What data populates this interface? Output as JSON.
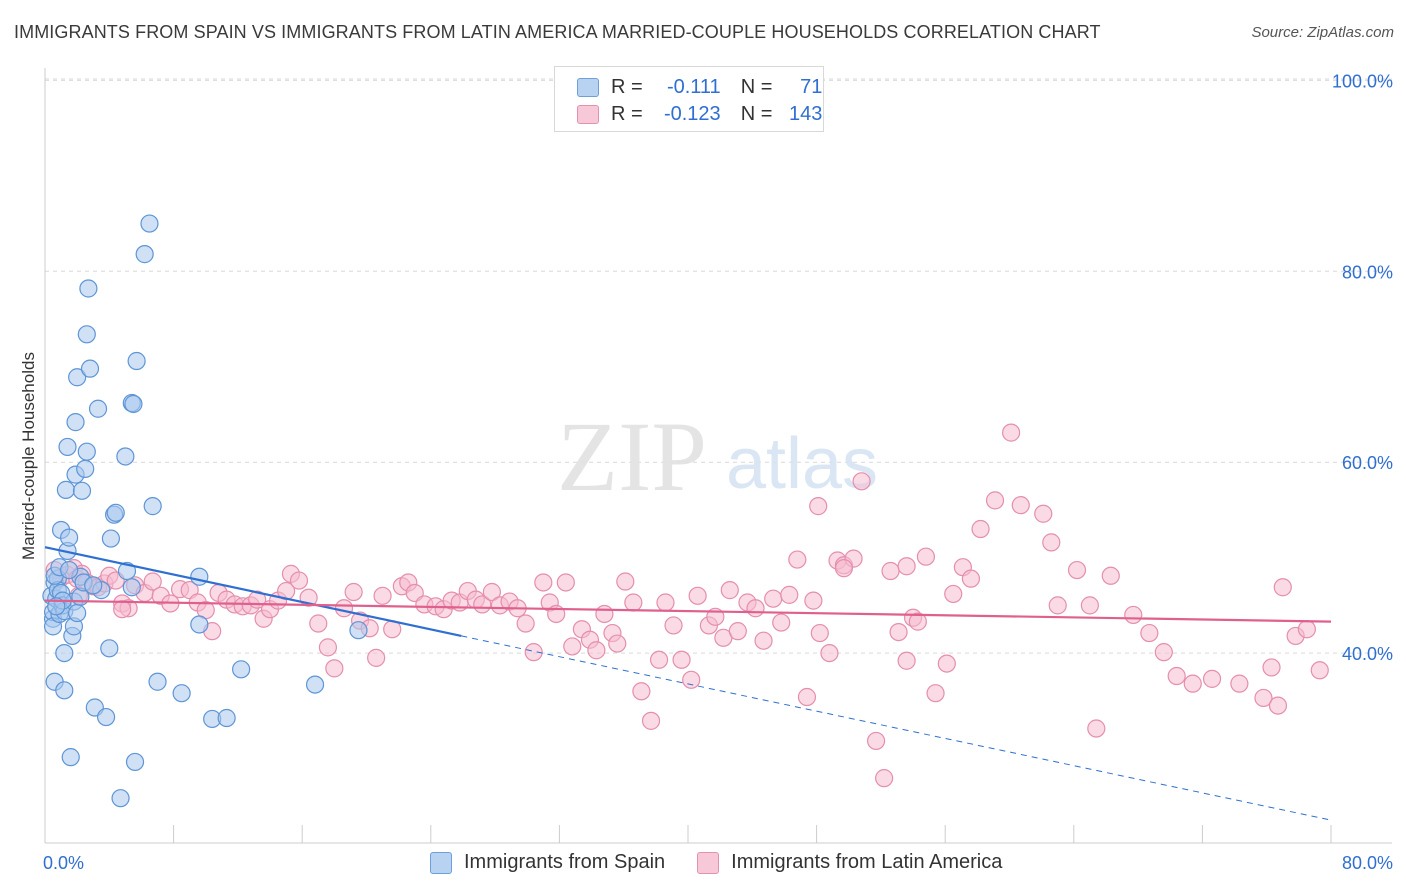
{
  "title": "IMMIGRANTS FROM SPAIN VS IMMIGRANTS FROM LATIN AMERICA MARRIED-COUPLE HOUSEHOLDS CORRELATION CHART",
  "source": "Source: ZipAtlas.com",
  "watermark": {
    "zip": "ZIP",
    "atlas": "atlas"
  },
  "stats": {
    "r_label": "R =",
    "n_label": "N =",
    "spain": {
      "r": "-0.111",
      "n": "71"
    },
    "latin": {
      "r": "-0.123",
      "n": "143"
    }
  },
  "legend": {
    "spain": "Immigrants from Spain",
    "latin": "Immigrants from Latin America"
  },
  "colors": {
    "spain_fill": "#a9c9ef",
    "spain_stroke": "#5e95d6",
    "spain_line": "#2f6fd1",
    "latin_fill": "#f5bcd0",
    "latin_stroke": "#e58eae",
    "latin_line": "#e0608d",
    "axis_label": "#2f6fd1",
    "grid": "#d9d9d9"
  },
  "chart_data": {
    "type": "scatter",
    "title": "IMMIGRANTS FROM SPAIN VS IMMIGRANTS FROM LATIN AMERICA MARRIED-COUPLE HOUSEHOLDS CORRELATION CHART",
    "xlabel": "",
    "ylabel": "Married-couple Households",
    "xlim": [
      0,
      80
    ],
    "ylim": [
      20,
      102
    ],
    "x_tick_labels": [
      "0.0%",
      "80.0%"
    ],
    "y_ticks": [
      40,
      60,
      80,
      100
    ],
    "y_tick_labels": [
      "40.0%",
      "60.0%",
      "80.0%",
      "100.0%"
    ],
    "grid": true,
    "series": [
      {
        "name": "Immigrants from Spain",
        "points": [
          [
            0.4,
            46.0
          ],
          [
            0.5,
            43.6
          ],
          [
            0.5,
            44.3
          ],
          [
            0.6,
            47.4
          ],
          [
            0.7,
            45.7
          ],
          [
            0.8,
            47.8
          ],
          [
            0.5,
            42.8
          ],
          [
            0.6,
            37.0
          ],
          [
            0.8,
            46.6
          ],
          [
            0.9,
            44.1
          ],
          [
            1.0,
            46.3
          ],
          [
            1.1,
            45.0
          ],
          [
            1.0,
            52.9
          ],
          [
            1.2,
            44.4
          ],
          [
            1.2,
            40.0
          ],
          [
            1.2,
            36.1
          ],
          [
            1.3,
            57.1
          ],
          [
            1.4,
            50.7
          ],
          [
            1.4,
            61.6
          ],
          [
            1.5,
            52.1
          ],
          [
            1.6,
            29.1
          ],
          [
            1.7,
            41.8
          ],
          [
            1.8,
            42.8
          ],
          [
            1.8,
            45.4
          ],
          [
            1.9,
            64.2
          ],
          [
            1.9,
            58.7
          ],
          [
            2.0,
            44.2
          ],
          [
            2.0,
            68.9
          ],
          [
            2.2,
            48.0
          ],
          [
            2.3,
            57.0
          ],
          [
            2.5,
            59.3
          ],
          [
            2.6,
            61.1
          ],
          [
            2.6,
            73.4
          ],
          [
            2.7,
            78.2
          ],
          [
            2.8,
            69.8
          ],
          [
            3.1,
            34.3
          ],
          [
            3.3,
            65.6
          ],
          [
            3.5,
            46.6
          ],
          [
            3.8,
            33.3
          ],
          [
            4.0,
            40.5
          ],
          [
            4.1,
            52.0
          ],
          [
            4.3,
            54.5
          ],
          [
            4.4,
            54.7
          ],
          [
            4.7,
            24.8
          ],
          [
            5.0,
            60.6
          ],
          [
            5.1,
            48.6
          ],
          [
            5.4,
            46.9
          ],
          [
            5.4,
            66.2
          ],
          [
            5.5,
            66.1
          ],
          [
            5.6,
            28.6
          ],
          [
            5.7,
            70.6
          ],
          [
            6.2,
            81.8
          ],
          [
            6.5,
            85.0
          ],
          [
            6.7,
            55.4
          ],
          [
            7.0,
            37.0
          ],
          [
            8.5,
            35.8
          ],
          [
            9.6,
            48.0
          ],
          [
            9.6,
            43.0
          ],
          [
            10.4,
            33.1
          ],
          [
            11.3,
            33.2
          ],
          [
            12.2,
            38.3
          ],
          [
            16.8,
            36.7
          ],
          [
            19.5,
            42.4
          ],
          [
            0.6,
            48.1
          ],
          [
            0.9,
            49.0
          ],
          [
            1.1,
            45.5
          ],
          [
            0.7,
            44.9
          ],
          [
            1.5,
            48.7
          ],
          [
            2.2,
            45.9
          ],
          [
            2.4,
            47.4
          ],
          [
            3.0,
            47.1
          ]
        ]
      },
      {
        "name": "Immigrants from Latin America",
        "points": [
          [
            0.6,
            48.7
          ],
          [
            1.0,
            47.9
          ],
          [
            1.4,
            48.2
          ],
          [
            1.8,
            48.9
          ],
          [
            2.0,
            47.8
          ],
          [
            2.3,
            48.3
          ],
          [
            2.6,
            47.4
          ],
          [
            3.0,
            47.0
          ],
          [
            3.3,
            46.9
          ],
          [
            3.7,
            47.3
          ],
          [
            4.0,
            48.1
          ],
          [
            4.4,
            47.6
          ],
          [
            4.8,
            45.2
          ],
          [
            5.2,
            44.7
          ],
          [
            5.6,
            47.1
          ],
          [
            6.2,
            46.3
          ],
          [
            6.7,
            47.5
          ],
          [
            7.2,
            46.0
          ],
          [
            7.8,
            45.2
          ],
          [
            8.4,
            46.7
          ],
          [
            9.0,
            46.6
          ],
          [
            9.5,
            45.3
          ],
          [
            10.0,
            44.5
          ],
          [
            10.4,
            42.3
          ],
          [
            10.8,
            46.3
          ],
          [
            11.3,
            45.6
          ],
          [
            11.8,
            45.1
          ],
          [
            12.3,
            44.9
          ],
          [
            12.8,
            45.0
          ],
          [
            13.2,
            45.6
          ],
          [
            13.6,
            43.6
          ],
          [
            14.0,
            44.6
          ],
          [
            14.5,
            45.5
          ],
          [
            15.0,
            46.5
          ],
          [
            15.3,
            48.3
          ],
          [
            15.8,
            47.6
          ],
          [
            16.4,
            45.8
          ],
          [
            17.0,
            43.1
          ],
          [
            17.6,
            40.6
          ],
          [
            18.0,
            38.4
          ],
          [
            18.6,
            44.7
          ],
          [
            19.2,
            46.4
          ],
          [
            19.6,
            43.4
          ],
          [
            20.2,
            42.6
          ],
          [
            20.6,
            39.5
          ],
          [
            21.0,
            46.0
          ],
          [
            21.6,
            42.5
          ],
          [
            22.2,
            47.0
          ],
          [
            22.6,
            47.4
          ],
          [
            23.0,
            46.3
          ],
          [
            23.6,
            45.1
          ],
          [
            24.3,
            44.9
          ],
          [
            24.8,
            44.6
          ],
          [
            25.3,
            45.5
          ],
          [
            25.8,
            45.3
          ],
          [
            26.3,
            46.5
          ],
          [
            26.8,
            45.6
          ],
          [
            27.2,
            45.1
          ],
          [
            27.8,
            46.4
          ],
          [
            28.3,
            45.0
          ],
          [
            28.9,
            45.4
          ],
          [
            29.4,
            44.7
          ],
          [
            29.9,
            43.1
          ],
          [
            30.4,
            40.1
          ],
          [
            31.0,
            47.4
          ],
          [
            31.4,
            45.3
          ],
          [
            31.8,
            44.1
          ],
          [
            32.4,
            47.4
          ],
          [
            32.8,
            40.7
          ],
          [
            33.4,
            42.5
          ],
          [
            33.9,
            41.4
          ],
          [
            34.3,
            40.3
          ],
          [
            34.8,
            44.1
          ],
          [
            35.3,
            42.1
          ],
          [
            35.6,
            41.0
          ],
          [
            36.1,
            47.5
          ],
          [
            36.6,
            45.3
          ],
          [
            37.1,
            36.0
          ],
          [
            37.7,
            32.9
          ],
          [
            38.2,
            39.3
          ],
          [
            38.6,
            45.3
          ],
          [
            39.1,
            42.9
          ],
          [
            39.6,
            39.3
          ],
          [
            40.2,
            37.2
          ],
          [
            40.6,
            46.0
          ],
          [
            41.3,
            42.9
          ],
          [
            41.7,
            43.8
          ],
          [
            42.2,
            41.6
          ],
          [
            42.6,
            46.6
          ],
          [
            43.1,
            42.3
          ],
          [
            43.7,
            45.3
          ],
          [
            44.2,
            44.7
          ],
          [
            44.7,
            41.3
          ],
          [
            45.3,
            45.7
          ],
          [
            45.8,
            43.2
          ],
          [
            46.3,
            46.1
          ],
          [
            46.8,
            49.8
          ],
          [
            47.4,
            35.4
          ],
          [
            47.8,
            45.5
          ],
          [
            48.2,
            42.1
          ],
          [
            48.8,
            40.0
          ],
          [
            49.3,
            49.7
          ],
          [
            49.7,
            49.2
          ],
          [
            50.3,
            49.9
          ],
          [
            50.8,
            58.0
          ],
          [
            51.7,
            30.8
          ],
          [
            52.2,
            26.9
          ],
          [
            52.6,
            48.6
          ],
          [
            53.1,
            42.2
          ],
          [
            53.6,
            39.2
          ],
          [
            54.0,
            43.7
          ],
          [
            54.3,
            43.3
          ],
          [
            54.8,
            50.1
          ],
          [
            55.4,
            35.8
          ],
          [
            56.1,
            38.9
          ],
          [
            56.5,
            46.2
          ],
          [
            57.1,
            49.0
          ],
          [
            57.6,
            47.8
          ],
          [
            58.2,
            53.0
          ],
          [
            59.1,
            56.0
          ],
          [
            60.1,
            63.1
          ],
          [
            60.7,
            55.5
          ],
          [
            62.1,
            54.6
          ],
          [
            62.6,
            51.6
          ],
          [
            63.0,
            45.0
          ],
          [
            64.2,
            48.7
          ],
          [
            65.0,
            45.0
          ],
          [
            66.3,
            48.1
          ],
          [
            67.7,
            44.0
          ],
          [
            68.7,
            42.1
          ],
          [
            69.6,
            40.1
          ],
          [
            70.4,
            37.6
          ],
          [
            71.4,
            36.8
          ],
          [
            72.6,
            37.3
          ],
          [
            74.3,
            36.8
          ],
          [
            75.8,
            35.3
          ],
          [
            76.3,
            38.5
          ],
          [
            77.0,
            46.9
          ],
          [
            77.8,
            41.8
          ],
          [
            78.5,
            42.5
          ],
          [
            79.3,
            38.2
          ],
          [
            2.1,
            46.0
          ],
          [
            4.8,
            44.6
          ],
          [
            53.6,
            49.1
          ],
          [
            48.1,
            55.4
          ],
          [
            49.7,
            48.9
          ],
          [
            65.4,
            32.1
          ],
          [
            76.7,
            34.5
          ]
        ]
      }
    ],
    "trend_lines": [
      {
        "series": "Immigrants from Spain",
        "x": [
          0,
          25.9
        ],
        "y": [
          51.1,
          41.8
        ],
        "style": "solid"
      },
      {
        "series": "Immigrants from Spain",
        "x": [
          25.9,
          80
        ],
        "y": [
          41.8,
          22.5
        ],
        "style": "dashed"
      },
      {
        "series": "Immigrants from Latin America",
        "x": [
          0,
          80
        ],
        "y": [
          45.5,
          43.3
        ],
        "style": "solid"
      }
    ]
  }
}
